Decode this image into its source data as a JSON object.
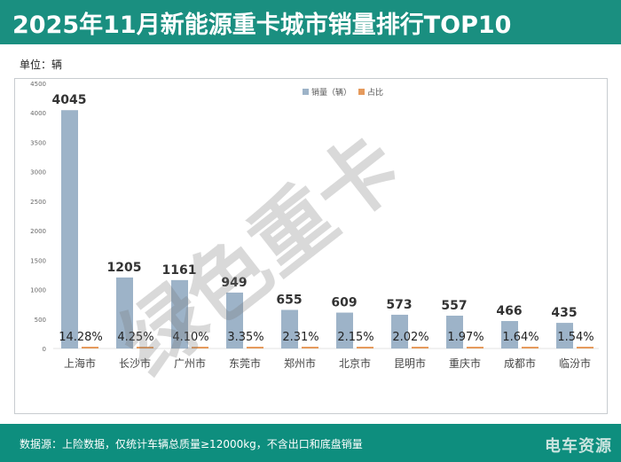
{
  "header": {
    "title": "2025年11月新能源重卡城市销量排行TOP10"
  },
  "unit_label": "单位：辆",
  "footer": {
    "note": "数据源：上险数据，仅统计车辆总质量≥12000kg，不含出口和底盘销量",
    "logo": "电车资源"
  },
  "watermark": "绿色重卡",
  "colors": {
    "header": "#1a8f80",
    "bar": "#9db3c8",
    "share": "#e59a5c"
  },
  "chart_data": {
    "type": "bar",
    "categories": [
      "上海市",
      "长沙市",
      "广州市",
      "东莞市",
      "郑州市",
      "北京市",
      "昆明市",
      "重庆市",
      "成都市",
      "临汾市"
    ],
    "series": [
      {
        "name": "销量（辆）",
        "values": [
          4045,
          1205,
          1161,
          949,
          655,
          609,
          573,
          557,
          466,
          435
        ]
      },
      {
        "name": "占比",
        "values": [
          14.28,
          4.25,
          4.1,
          3.35,
          2.31,
          2.15,
          2.02,
          1.97,
          1.64,
          1.54
        ],
        "labels": [
          "14.28%",
          "4.25%",
          "4.10%",
          "3.35%",
          "2.31%",
          "2.15%",
          "2.02%",
          "1.97%",
          "1.64%",
          "1.54%"
        ]
      }
    ],
    "ylim": [
      0,
      4500
    ],
    "yticks": [
      "0",
      "500",
      "1000",
      "1500",
      "2000",
      "2500",
      "3000",
      "3500",
      "4000",
      "4500"
    ],
    "legend": "top-center",
    "grid": false
  }
}
